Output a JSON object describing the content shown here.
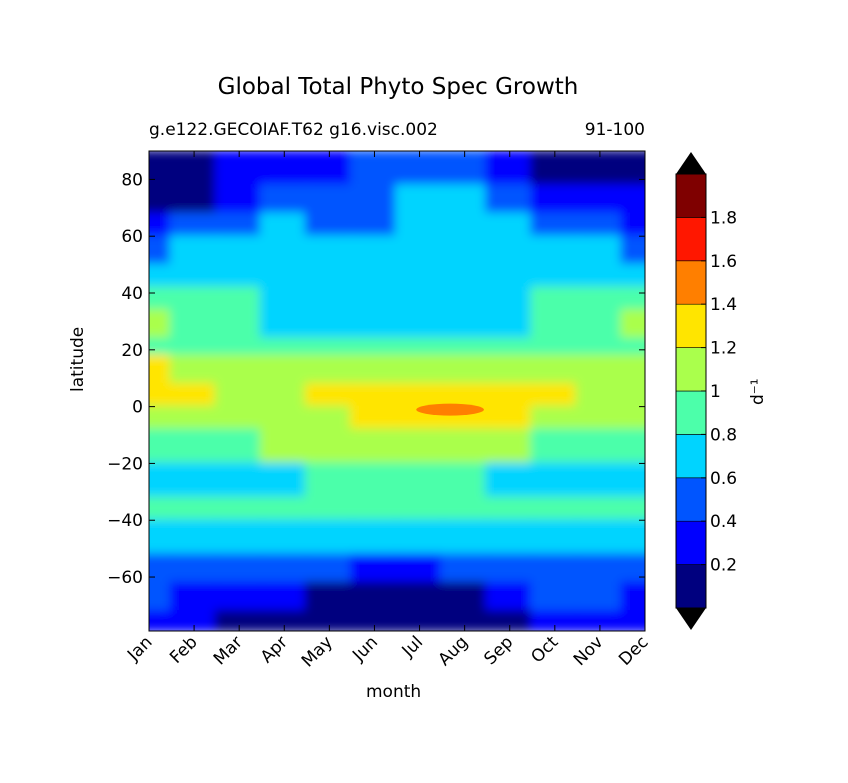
{
  "chart_data": {
    "type": "heatmap",
    "title": "Global Total Phyto Spec Growth",
    "subtitle_left": "g.e122.GECOIAF.T62 g16.visc.002",
    "subtitle_right": "91-100",
    "xlabel": "month",
    "ylabel": "latitude",
    "colorbar_label": "d⁻¹",
    "categories": [
      "Jan",
      "Feb",
      "Mar",
      "Apr",
      "May",
      "Jun",
      "Jul",
      "Aug",
      "Sep",
      "Oct",
      "Nov",
      "Dec"
    ],
    "yticks": [
      80,
      60,
      40,
      20,
      0,
      -20,
      -40,
      -60
    ],
    "ytick_labels": [
      "80",
      "60",
      "40",
      "20",
      "0",
      "−20",
      "−40",
      "−60"
    ],
    "ylim": [
      -79,
      90
    ],
    "levels": [
      0,
      0.2,
      0.4,
      0.6,
      0.8,
      1.0,
      1.2,
      1.4,
      1.6,
      1.8,
      2.0
    ],
    "colorbar_ticks": [
      0.2,
      0.4,
      0.6,
      0.8,
      1.0,
      1.2,
      1.4,
      1.6,
      1.8
    ],
    "colorbar_tick_labels": [
      "0.2",
      "0.4",
      "0.6",
      "0.8",
      "1",
      "1.2",
      "1.4",
      "1.6",
      "1.8"
    ],
    "colors": [
      "#00007f",
      "#0000ff",
      "#0055ff",
      "#00d4ff",
      "#4cffaa",
      "#aaff4c",
      "#ffe500",
      "#ff7f00",
      "#ff1700",
      "#7f0000"
    ],
    "under_color": "#000000",
    "over_color": "#000000",
    "grid": false,
    "lat_bands": [
      {
        "lat": [
          78,
          90
        ],
        "values": [
          0.1,
          0.1,
          0.2,
          0.3,
          0.3,
          0.5,
          0.5,
          0.5,
          0.3,
          0.1,
          0.1,
          0.1
        ]
      },
      {
        "lat": [
          68,
          78
        ],
        "values": [
          0.1,
          0.1,
          0.2,
          0.4,
          0.5,
          0.5,
          0.6,
          0.6,
          0.4,
          0.2,
          0.2,
          0.2
        ]
      },
      {
        "lat": [
          60,
          68
        ],
        "values": [
          0.3,
          0.4,
          0.5,
          0.7,
          0.5,
          0.5,
          0.7,
          0.7,
          0.7,
          0.5,
          0.4,
          0.3
        ]
      },
      {
        "lat": [
          50,
          60
        ],
        "values": [
          0.5,
          0.6,
          0.7,
          0.7,
          0.7,
          0.7,
          0.7,
          0.7,
          0.7,
          0.7,
          0.6,
          0.5
        ]
      },
      {
        "lat": [
          42,
          50
        ],
        "values": [
          0.7,
          0.7,
          0.7,
          0.7,
          0.7,
          0.7,
          0.7,
          0.7,
          0.7,
          0.7,
          0.7,
          0.7
        ]
      },
      {
        "lat": [
          34,
          42
        ],
        "values": [
          0.9,
          0.9,
          0.9,
          0.7,
          0.7,
          0.7,
          0.7,
          0.7,
          0.7,
          0.9,
          0.9,
          0.9
        ]
      },
      {
        "lat": [
          24,
          34
        ],
        "values": [
          1.1,
          0.9,
          0.9,
          0.7,
          0.7,
          0.7,
          0.7,
          0.7,
          0.7,
          0.9,
          0.9,
          1.1
        ]
      },
      {
        "lat": [
          18,
          24
        ],
        "values": [
          0.9,
          0.9,
          0.9,
          0.9,
          0.9,
          0.9,
          0.9,
          0.9,
          0.9,
          0.9,
          0.9,
          0.9
        ]
      },
      {
        "lat": [
          8,
          18
        ],
        "values": [
          1.3,
          1.1,
          1.1,
          1.1,
          1.1,
          1.1,
          1.1,
          1.1,
          1.1,
          1.1,
          1.1,
          1.1
        ]
      },
      {
        "lat": [
          0,
          8
        ],
        "values": [
          1.3,
          1.3,
          1.1,
          1.1,
          1.3,
          1.3,
          1.3,
          1.3,
          1.3,
          1.3,
          1.1,
          1.1
        ]
      },
      {
        "lat": [
          -8,
          0
        ],
        "values": [
          1.1,
          1.1,
          1.1,
          1.1,
          1.1,
          1.3,
          1.3,
          1.3,
          1.3,
          1.1,
          1.1,
          1.1
        ]
      },
      {
        "lat": [
          -20,
          -8
        ],
        "values": [
          0.9,
          0.9,
          0.9,
          1.1,
          1.1,
          1.1,
          1.1,
          1.1,
          1.1,
          0.9,
          0.9,
          0.9
        ]
      },
      {
        "lat": [
          -32,
          -20
        ],
        "values": [
          0.7,
          0.7,
          0.7,
          0.7,
          0.9,
          0.9,
          0.9,
          0.9,
          0.7,
          0.7,
          0.7,
          0.7
        ]
      },
      {
        "lat": [
          -40,
          -32
        ],
        "values": [
          0.9,
          0.9,
          0.9,
          0.9,
          0.9,
          0.9,
          0.9,
          0.9,
          0.9,
          0.9,
          0.9,
          0.9
        ]
      },
      {
        "lat": [
          -52,
          -40
        ],
        "values": [
          0.7,
          0.7,
          0.7,
          0.7,
          0.7,
          0.7,
          0.7,
          0.7,
          0.7,
          0.7,
          0.7,
          0.7
        ]
      },
      {
        "lat": [
          -62,
          -52
        ],
        "values": [
          0.5,
          0.5,
          0.5,
          0.5,
          0.5,
          0.3,
          0.3,
          0.5,
          0.5,
          0.5,
          0.5,
          0.5
        ]
      },
      {
        "lat": [
          -72,
          -62
        ],
        "values": [
          0.5,
          0.3,
          0.3,
          0.3,
          0.1,
          0.1,
          0.1,
          0.1,
          0.3,
          0.5,
          0.5,
          0.3
        ]
      },
      {
        "lat": [
          -79,
          -72
        ],
        "values": [
          0.3,
          0.3,
          0.1,
          0.1,
          0.1,
          0.1,
          0.1,
          0.1,
          0.1,
          0.3,
          0.3,
          0.3
        ]
      }
    ],
    "peak": {
      "month_range": [
        "Jul",
        "Aug"
      ],
      "lat": 0,
      "value": 1.5
    }
  }
}
